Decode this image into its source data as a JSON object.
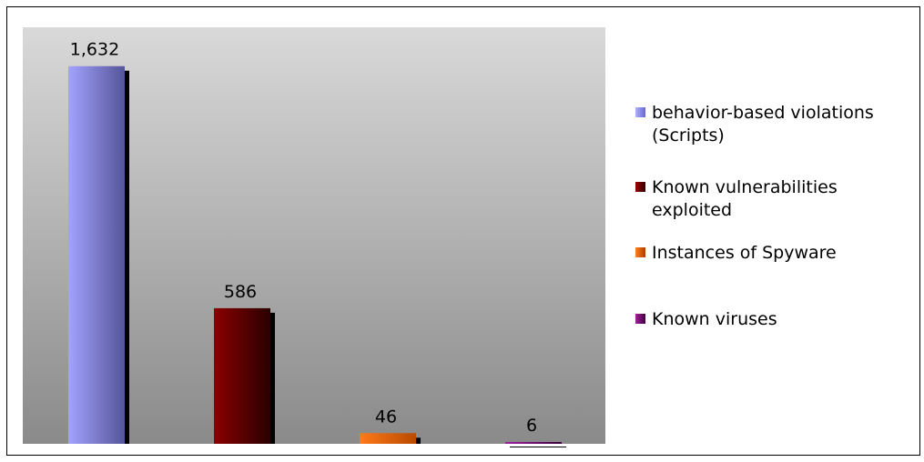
{
  "chart_data": {
    "type": "bar",
    "categories": [
      "behavior-based violations (Scripts)",
      "Known vulnerabilities exploited",
      "Instances of Spyware",
      "Known viruses"
    ],
    "values": [
      1632,
      586,
      46,
      6
    ],
    "data_labels": [
      "1,632",
      "586",
      "46",
      "6"
    ],
    "legend": [
      {
        "label": "behavior-based violations (Scripts)",
        "color": "#9999ff"
      },
      {
        "label": "Known vulnerabilities exploited",
        "color": "#800000"
      },
      {
        "label": "Instances of Spyware",
        "color": "#ff6600"
      },
      {
        "label": "Known viruses",
        "color": "#800080"
      }
    ],
    "legend_position": "right",
    "ylim": [
      0,
      1800
    ],
    "grid": false,
    "background": "gray-gradient",
    "title": "",
    "xlabel": "",
    "ylabel": ""
  }
}
